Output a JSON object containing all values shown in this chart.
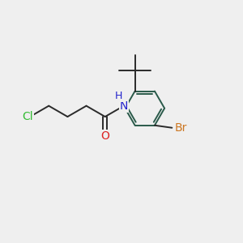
{
  "background_color": "#efefef",
  "bond_color": "#2a2a2a",
  "ring_bond_color": "#2a5a4a",
  "atom_colors": {
    "Cl": "#33bb33",
    "O": "#dd2222",
    "N": "#2222cc",
    "H": "#2222cc",
    "Br": "#cc7722"
  },
  "fig_width": 3.0,
  "fig_height": 3.0,
  "dpi": 100
}
